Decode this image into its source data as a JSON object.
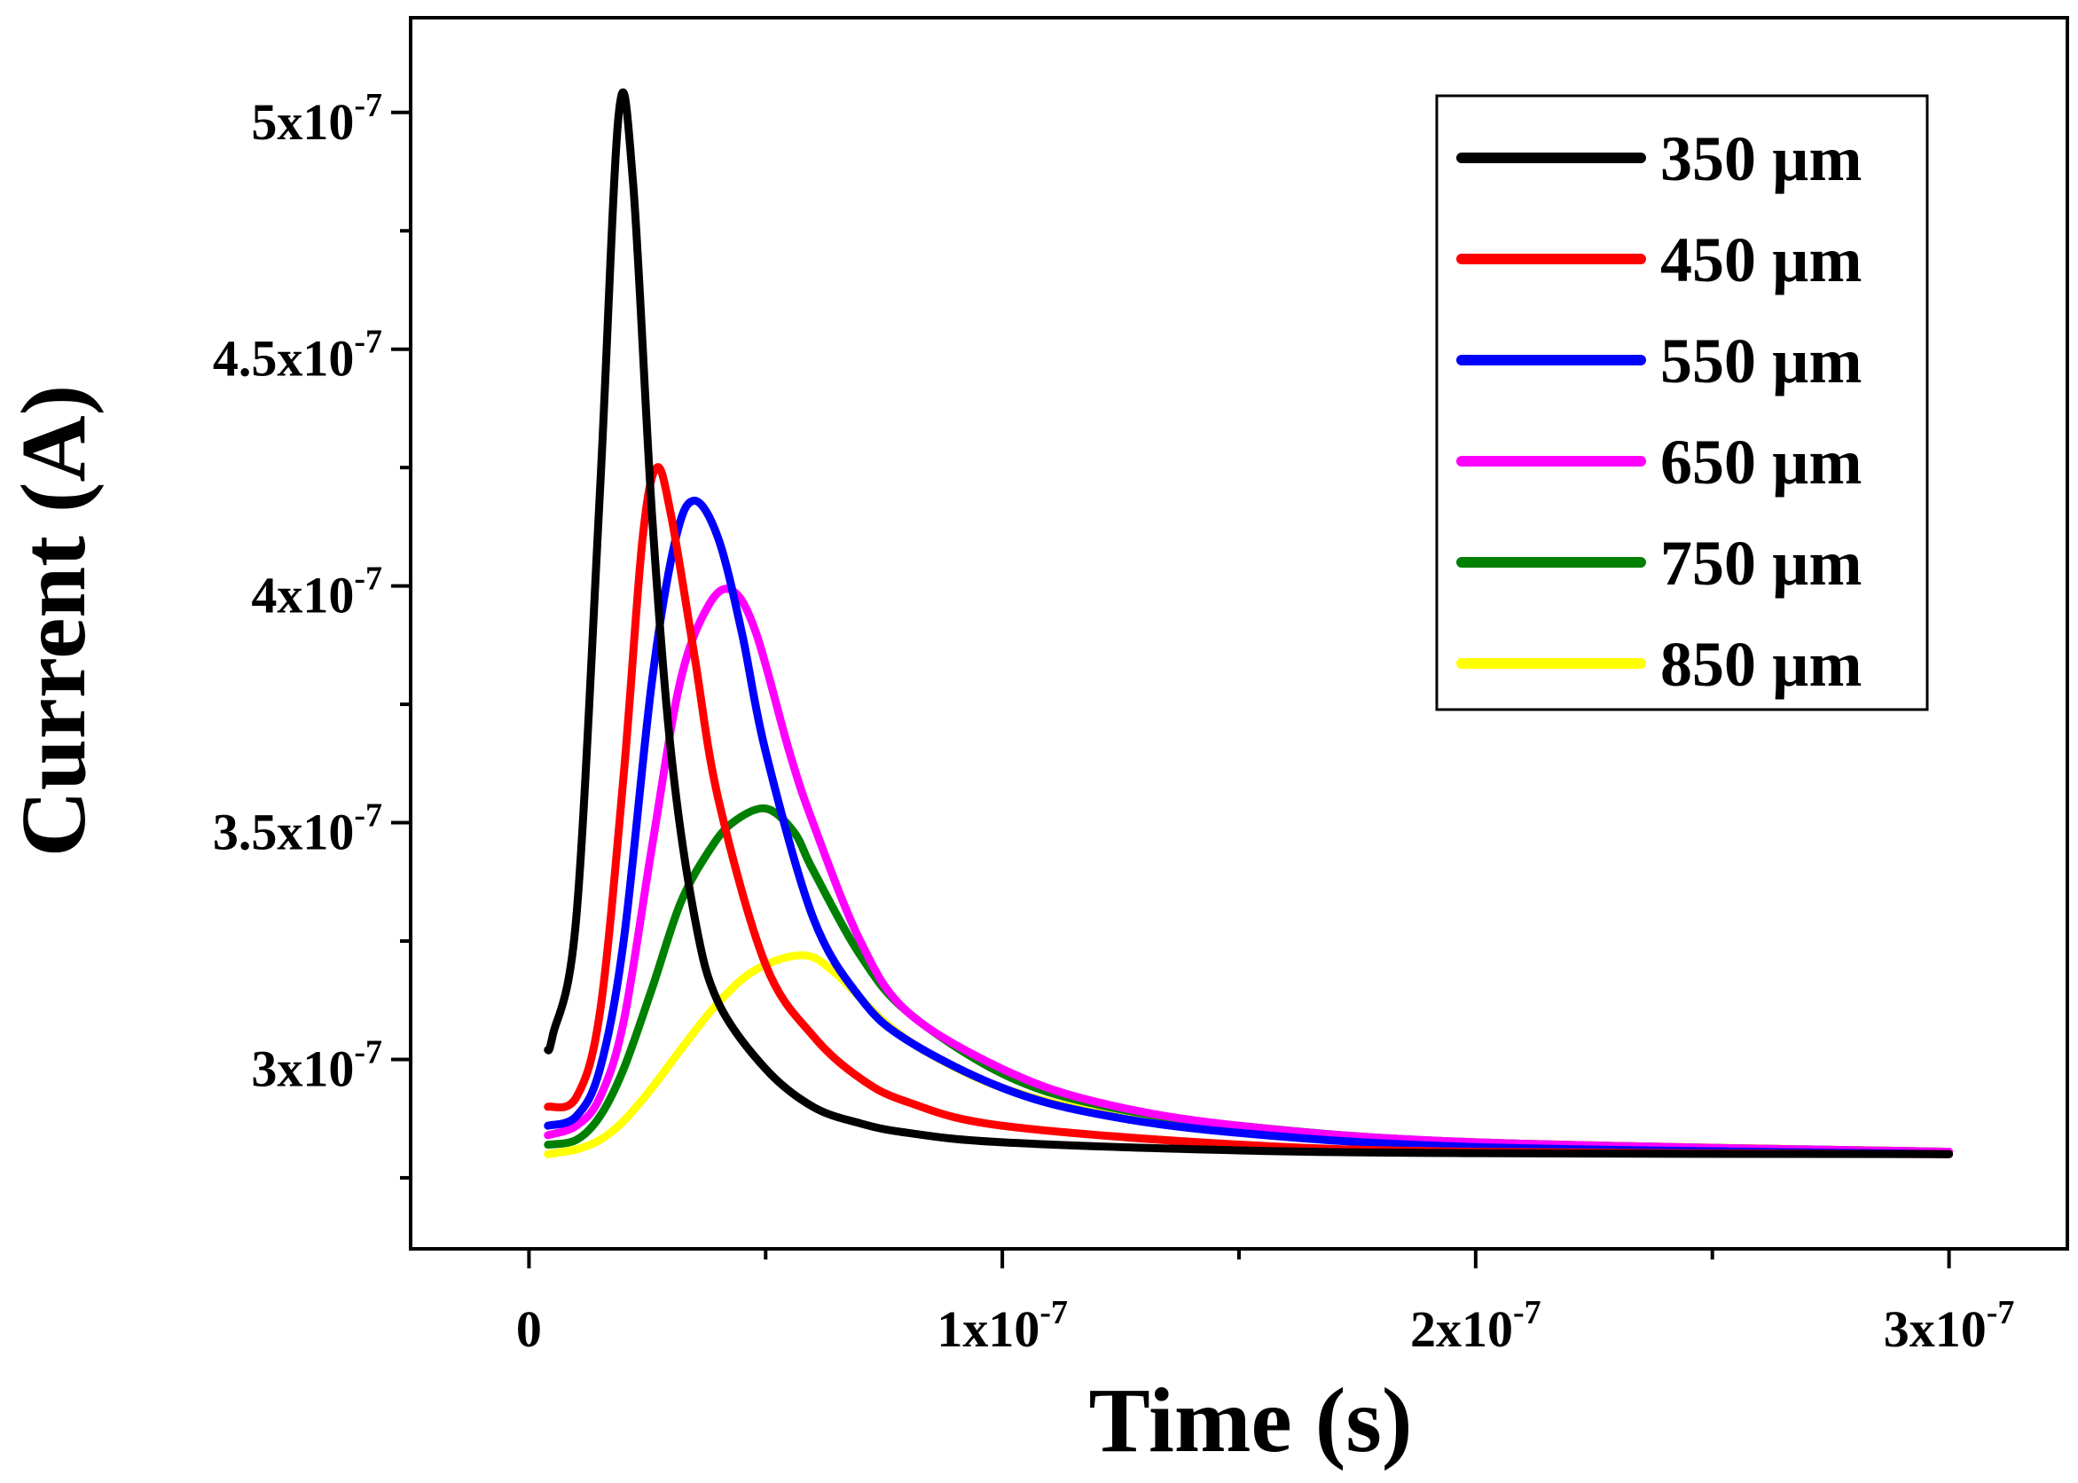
{
  "chart_data": {
    "type": "line",
    "title": "",
    "xlabel": "Time (s)",
    "ylabel": "Current (A)",
    "xlim": [
      -2.5e-08,
      3.25e-07
    ],
    "ylim": [
      2.6e-07,
      5.2e-07
    ],
    "x_ticks": [
      {
        "value": 0,
        "mantissa": "0",
        "exp": ""
      },
      {
        "value": 1e-07,
        "mantissa": "1x10",
        "exp": "-7"
      },
      {
        "value": 2e-07,
        "mantissa": "2x10",
        "exp": "-7"
      },
      {
        "value": 3e-07,
        "mantissa": "3x10",
        "exp": "-7"
      }
    ],
    "x_minor_ticks": [
      5e-08,
      1.5e-07,
      2.5e-07
    ],
    "y_ticks": [
      {
        "value": 3e-07,
        "mantissa": "3x10",
        "exp": "-7"
      },
      {
        "value": 3.5e-07,
        "mantissa": "3.5x10",
        "exp": "-7"
      },
      {
        "value": 4e-07,
        "mantissa": "4x10",
        "exp": "-7"
      },
      {
        "value": 4.5e-07,
        "mantissa": "4.5x10",
        "exp": "-7"
      },
      {
        "value": 5e-07,
        "mantissa": "5x10",
        "exp": "-7"
      }
    ],
    "y_minor_ticks": [
      2.75e-07,
      3.25e-07,
      3.75e-07,
      4.25e-07,
      4.75e-07
    ],
    "legend_position": "top-right",
    "grid": false,
    "series": [
      {
        "name": "350 µm",
        "color": "#000000",
        "baseline": 2.8e-07,
        "start_value": 3e-07,
        "points": [
          [
            4e-09,
            3.02e-07
          ],
          [
            5e-09,
            3.05e-07
          ],
          [
            1e-08,
            3.3e-07
          ],
          [
            1.5e-08,
            4.2e-07
          ],
          [
            1.9e-08,
            5e-07
          ],
          [
            2.2e-08,
            4.85e-07
          ],
          [
            2.6e-08,
            4.15e-07
          ],
          [
            3e-08,
            3.65e-07
          ],
          [
            3.5e-08,
            3.3e-07
          ],
          [
            4e-08,
            3.12e-07
          ],
          [
            5e-08,
            2.98e-07
          ],
          [
            6e-08,
            2.9e-07
          ],
          [
            7e-08,
            2.865e-07
          ],
          [
            8e-08,
            2.845e-07
          ],
          [
            1e-07,
            2.825e-07
          ],
          [
            1.5e-07,
            2.808e-07
          ],
          [
            2e-07,
            2.802e-07
          ],
          [
            3e-07,
            2.8e-07
          ]
        ]
      },
      {
        "name": "450 µm",
        "color": "#ff0000",
        "baseline": 2.8e-07,
        "start_value": 2.9e-07,
        "points": [
          [
            4e-09,
            2.9e-07
          ],
          [
            1e-08,
            2.92e-07
          ],
          [
            1.5e-08,
            3.1e-07
          ],
          [
            2e-08,
            3.6e-07
          ],
          [
            2.4e-08,
            4.1e-07
          ],
          [
            2.7e-08,
            4.25e-07
          ],
          [
            3e-08,
            4.15e-07
          ],
          [
            3.5e-08,
            3.85e-07
          ],
          [
            4e-08,
            3.55e-07
          ],
          [
            5e-08,
            3.2e-07
          ],
          [
            6e-08,
            3.05e-07
          ],
          [
            7e-08,
            2.96e-07
          ],
          [
            8e-08,
            2.91e-07
          ],
          [
            1e-07,
            2.86e-07
          ],
          [
            1.5e-07,
            2.82e-07
          ],
          [
            2e-07,
            2.805e-07
          ],
          [
            3e-07,
            2.8e-07
          ]
        ]
      },
      {
        "name": "550 µm",
        "color": "#0000ff",
        "baseline": 2.8e-07,
        "start_value": 2.86e-07,
        "points": [
          [
            4e-09,
            2.86e-07
          ],
          [
            1e-08,
            2.88e-07
          ],
          [
            1.5e-08,
            2.98e-07
          ],
          [
            2e-08,
            3.25e-07
          ],
          [
            2.6e-08,
            3.8e-07
          ],
          [
            3.1e-08,
            4.1e-07
          ],
          [
            3.5e-08,
            4.18e-07
          ],
          [
            4e-08,
            4.1e-07
          ],
          [
            4.5e-08,
            3.9e-07
          ],
          [
            5e-08,
            3.65e-07
          ],
          [
            6e-08,
            3.3e-07
          ],
          [
            7e-08,
            3.13e-07
          ],
          [
            8e-08,
            3.04e-07
          ],
          [
            1e-07,
            2.94e-07
          ],
          [
            1.2e-07,
            2.885e-07
          ],
          [
            1.5e-07,
            2.845e-07
          ],
          [
            2e-07,
            2.815e-07
          ],
          [
            3e-07,
            2.8e-07
          ]
        ]
      },
      {
        "name": "650 µm",
        "color": "#ff00ff",
        "baseline": 2.8e-07,
        "start_value": 2.84e-07,
        "points": [
          [
            4e-09,
            2.84e-07
          ],
          [
            1e-08,
            2.86e-07
          ],
          [
            1.5e-08,
            2.92e-07
          ],
          [
            2e-08,
            3.08e-07
          ],
          [
            2.6e-08,
            3.45e-07
          ],
          [
            3.2e-08,
            3.8e-07
          ],
          [
            3.8e-08,
            3.96e-07
          ],
          [
            4.3e-08,
            3.99e-07
          ],
          [
            4.8e-08,
            3.9e-07
          ],
          [
            5.5e-08,
            3.65e-07
          ],
          [
            6e-08,
            3.5e-07
          ],
          [
            7e-08,
            3.25e-07
          ],
          [
            8e-08,
            3.1e-07
          ],
          [
            1e-07,
            2.98e-07
          ],
          [
            1.2e-07,
            2.91e-07
          ],
          [
            1.5e-07,
            2.86e-07
          ],
          [
            2e-07,
            2.825e-07
          ],
          [
            3e-07,
            2.805e-07
          ]
        ]
      },
      {
        "name": "750 µm",
        "color": "#008000",
        "baseline": 2.8e-07,
        "start_value": 2.82e-07,
        "points": [
          [
            4e-09,
            2.82e-07
          ],
          [
            1e-08,
            2.83e-07
          ],
          [
            1.5e-08,
            2.88e-07
          ],
          [
            2e-08,
            2.98e-07
          ],
          [
            2.6e-08,
            3.15e-07
          ],
          [
            3.2e-08,
            3.33e-07
          ],
          [
            3.8e-08,
            3.44e-07
          ],
          [
            4.3e-08,
            3.5e-07
          ],
          [
            5e-08,
            3.53e-07
          ],
          [
            5.6e-08,
            3.48e-07
          ],
          [
            6e-08,
            3.4e-07
          ],
          [
            7e-08,
            3.22e-07
          ],
          [
            8e-08,
            3.1e-07
          ],
          [
            1e-07,
            2.97e-07
          ],
          [
            1.2e-07,
            2.905e-07
          ],
          [
            1.5e-07,
            2.86e-07
          ],
          [
            2e-07,
            2.825e-07
          ],
          [
            3e-07,
            2.805e-07
          ]
        ]
      },
      {
        "name": "850 µm",
        "color": "#ffff00",
        "baseline": 2.8e-07,
        "start_value": 2.8e-07,
        "points": [
          [
            4e-09,
            2.8e-07
          ],
          [
            1e-08,
            2.81e-07
          ],
          [
            1.5e-08,
            2.83e-07
          ],
          [
            2e-08,
            2.87e-07
          ],
          [
            2.6e-08,
            2.94e-07
          ],
          [
            3.2e-08,
            3.02e-07
          ],
          [
            4e-08,
            3.12e-07
          ],
          [
            4.8e-08,
            3.19e-07
          ],
          [
            5.8e-08,
            3.22e-07
          ],
          [
            6.5e-08,
            3.18e-07
          ],
          [
            7.5e-08,
            3.08e-07
          ],
          [
            8.5e-08,
            3.01e-07
          ],
          [
            1e-07,
            2.94e-07
          ],
          [
            1.2e-07,
            2.89e-07
          ],
          [
            1.5e-07,
            2.855e-07
          ],
          [
            2e-07,
            2.825e-07
          ],
          [
            3e-07,
            2.805e-07
          ]
        ]
      }
    ]
  }
}
